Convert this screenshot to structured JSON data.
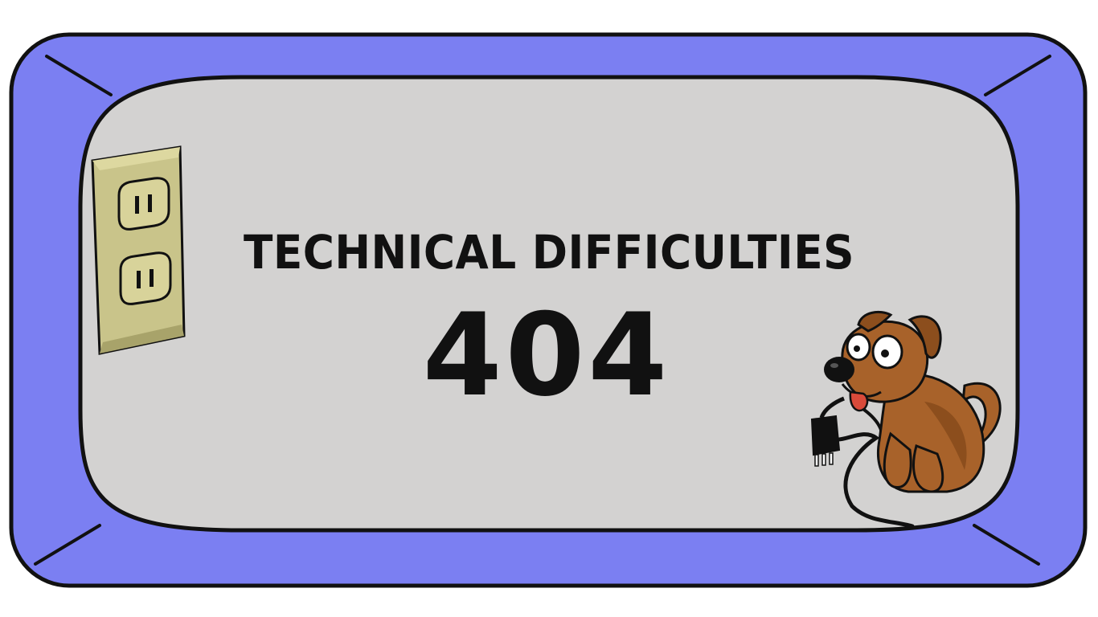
{
  "message": {
    "title": "TECHNICAL DIFFICULTIES",
    "code": "404"
  },
  "colors": {
    "frame": "#7b7ff2",
    "screen": "#d3d2d1",
    "outline": "#111111",
    "outlet_plate": "#c9c48a",
    "dog_fur": "#a8622a",
    "dog_tongue": "#d94a3a"
  },
  "illustrations": {
    "left": "wall-outlet-icon",
    "right": "puppy-with-unplugged-cord-icon"
  }
}
